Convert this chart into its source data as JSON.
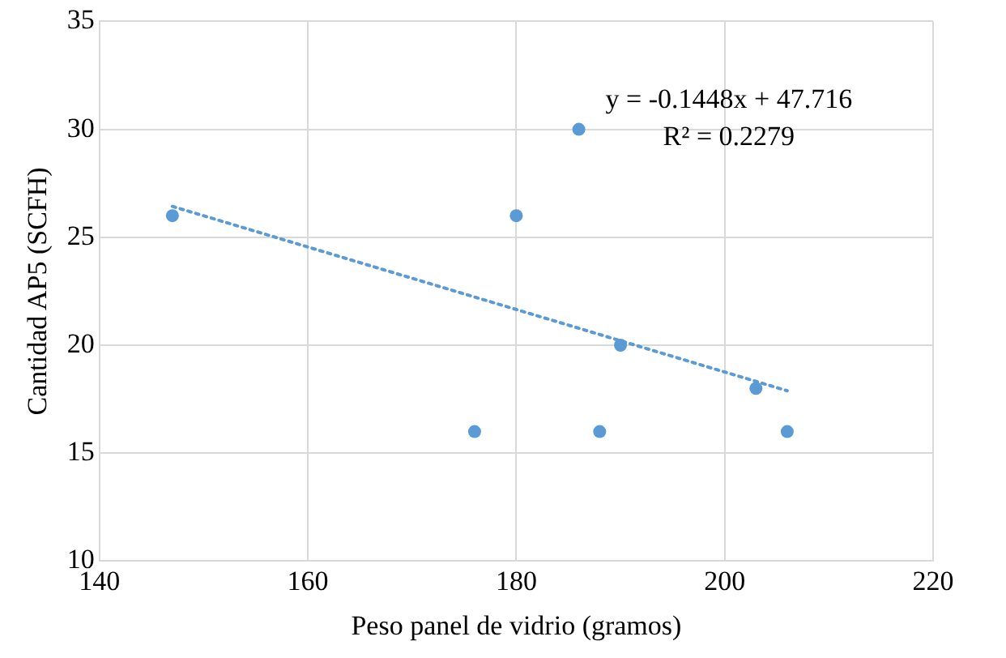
{
  "chart_data": {
    "type": "scatter",
    "xlabel": "Peso panel de vidrio (gramos)",
    "ylabel": "Cantidad AP5 (SCFH)",
    "xlim": [
      140,
      220
    ],
    "xticks": [
      140,
      160,
      180,
      200,
      220
    ],
    "ylim": [
      10,
      35
    ],
    "yticks": [
      10,
      15,
      20,
      25,
      30,
      35
    ],
    "grid": true,
    "legend": false,
    "marker": "circle",
    "annotations": [
      "y = -0.1448x + 47.716",
      "R² = 0.2279"
    ],
    "series": [
      {
        "type": "scatter",
        "color": "#5b9bd5",
        "x": [
          147,
          176,
          180,
          186,
          188,
          190,
          203,
          206
        ],
        "values": [
          26,
          16,
          26,
          30,
          16,
          20,
          18,
          16
        ]
      },
      {
        "type": "line",
        "color": "#5b9bd5",
        "line_style": "dotted",
        "marker": "none",
        "x": [
          147,
          206
        ],
        "values": [
          26.43,
          17.89
        ]
      }
    ]
  }
}
